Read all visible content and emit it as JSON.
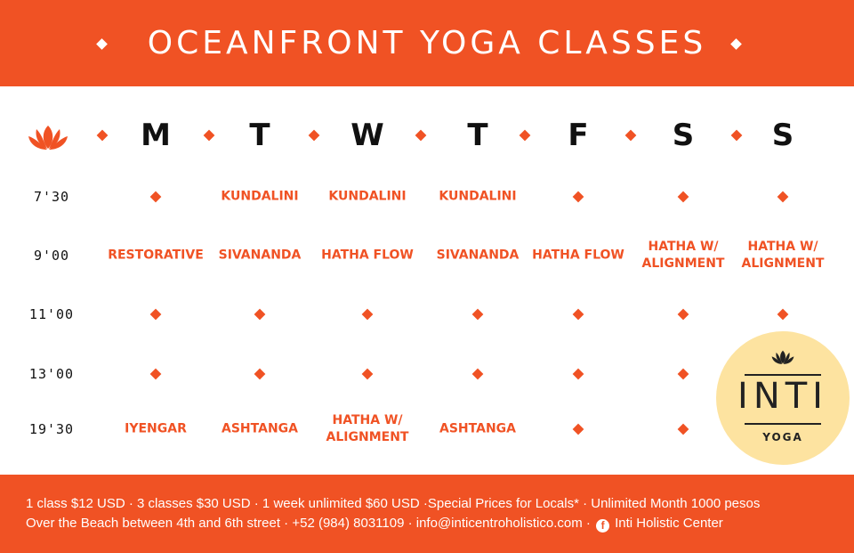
{
  "title": "OCEANFRONT YOGA CLASSES",
  "accent_color": "#f05224",
  "days": [
    "M",
    "T",
    "W",
    "T",
    "F",
    "S",
    "S"
  ],
  "schedule": [
    {
      "time": "7'30",
      "classes": [
        null,
        "KUNDALINI",
        "KUNDALINI",
        "KUNDALINI",
        null,
        null,
        null
      ]
    },
    {
      "time": "9'00",
      "classes": [
        "RESTORATIVE",
        "SIVANANDA",
        "HATHA FLOW",
        "SIVANANDA",
        "HATHA FLOW",
        "HATHA W/\nALIGNMENT",
        "HATHA W/\nALIGNMENT"
      ]
    },
    {
      "time": "11'00",
      "classes": [
        null,
        null,
        null,
        null,
        null,
        null,
        null
      ]
    },
    {
      "time": "13'00",
      "classes": [
        null,
        null,
        null,
        null,
        null,
        null,
        null
      ]
    },
    {
      "time": "19'30",
      "classes": [
        "IYENGAR",
        "ASHTANGA",
        "HATHA W/\nALIGNMENT",
        "ASHTANGA",
        null,
        null,
        null
      ]
    }
  ],
  "footer": {
    "prices": "1 class $12 USD · 3 classes $30 USD · 1 week unlimited $60 USD ·Special Prices for Locals* · Unlimited Month 1000 pesos",
    "contact": "Over the Beach between 4th and 6th street · +52 (984) 8031109 · info@inticentroholistico.com ·",
    "facebook": "Inti Holistic Center"
  },
  "logo": {
    "word": "INTI",
    "sub": "YOGA"
  }
}
